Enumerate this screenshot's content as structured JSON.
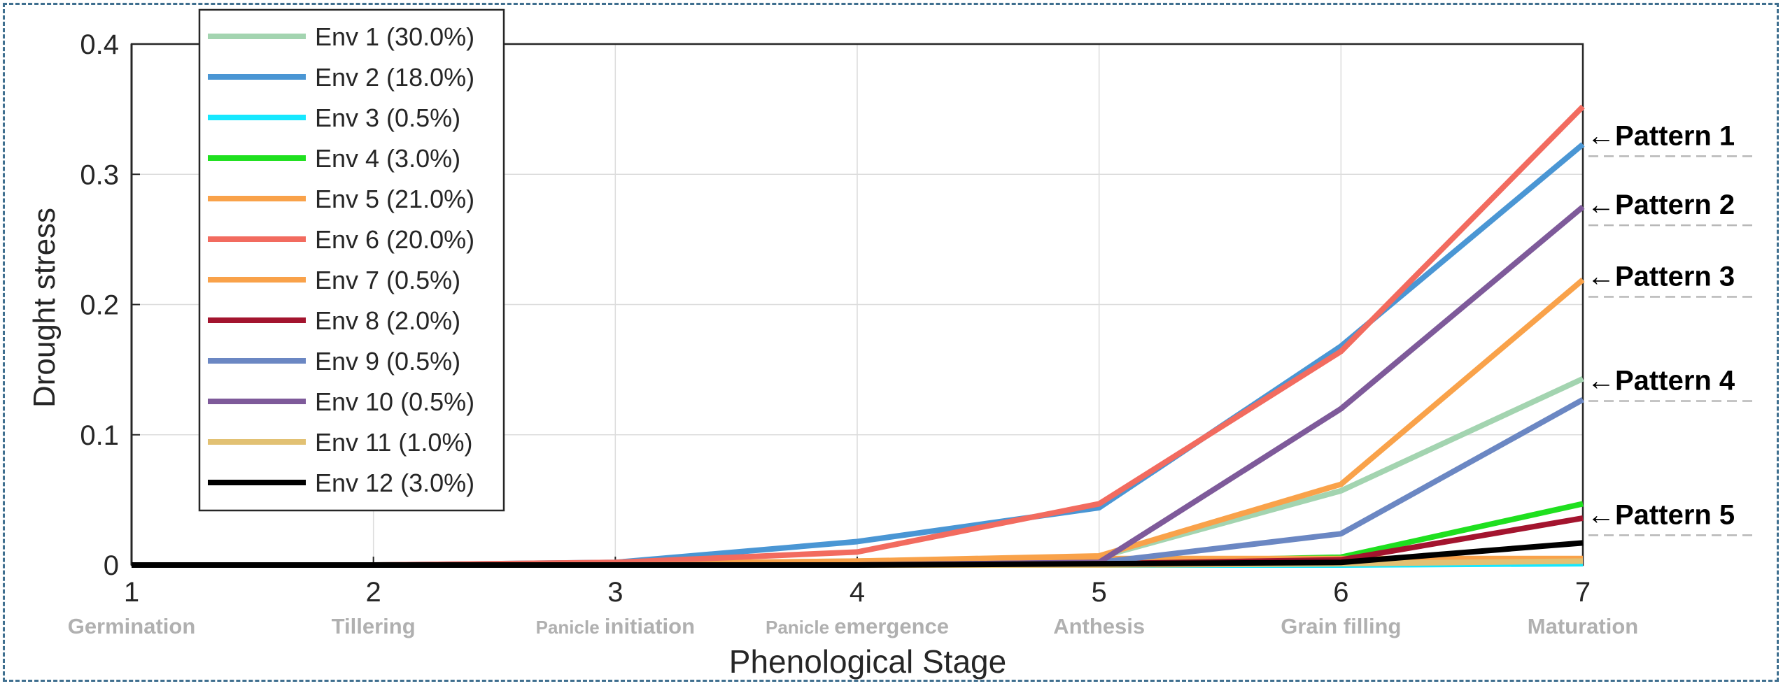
{
  "chart_data": {
    "type": "line",
    "title": "",
    "xlabel": "Phenological Stage",
    "ylabel": "Drought stress",
    "x": [
      1,
      2,
      3,
      4,
      5,
      6,
      7
    ],
    "x_ticks": [
      "1",
      "2",
      "3",
      "4",
      "5",
      "6",
      "7"
    ],
    "y_ticks": [
      "0",
      "0.1",
      "0.2",
      "0.3",
      "0.4"
    ],
    "xlim": [
      1,
      7
    ],
    "ylim": [
      0,
      0.4
    ],
    "grid": true,
    "legend_position": "top-left",
    "stage_labels": [
      {
        "pre": "",
        "main": "Germination"
      },
      {
        "pre": "",
        "main": "Tillering"
      },
      {
        "pre": "Panicle ",
        "main": "initiation"
      },
      {
        "pre": "Panicle ",
        "main": "emergence"
      },
      {
        "pre": "",
        "main": "Anthesis"
      },
      {
        "pre": "",
        "main": "Grain filling"
      },
      {
        "pre": "",
        "main": "Maturation"
      }
    ],
    "series": [
      {
        "name": "Env 1 (30.0%)",
        "color": "#a3d4b0",
        "values": [
          0,
          0,
          0.001,
          0.003,
          0.006,
          0.057,
          0.143
        ]
      },
      {
        "name": "Env 2 (18.0%)",
        "color": "#4a96d4",
        "values": [
          0,
          0,
          0.002,
          0.018,
          0.044,
          0.168,
          0.323
        ]
      },
      {
        "name": "Env 3 (0.5%)",
        "color": "#16e8ff",
        "values": [
          0,
          0,
          0,
          0,
          0,
          0,
          0.001
        ]
      },
      {
        "name": "Env 4 (3.0%)",
        "color": "#1fe01f",
        "values": [
          0,
          0,
          0,
          0.001,
          0.002,
          0.006,
          0.047
        ]
      },
      {
        "name": "Env 5 (21.0%)",
        "color": "#f9a24a",
        "values": [
          0,
          0,
          0.001,
          0.003,
          0.007,
          0.062,
          0.219
        ]
      },
      {
        "name": "Env 6 (20.0%)",
        "color": "#f26b5f",
        "values": [
          0,
          0,
          0.002,
          0.01,
          0.047,
          0.164,
          0.352
        ]
      },
      {
        "name": "Env 7 (0.5%)",
        "color": "#f9a24a",
        "values": [
          0,
          0,
          0,
          0.001,
          0.005,
          0.005,
          0.005
        ]
      },
      {
        "name": "Env 8 (2.0%)",
        "color": "#a3142e",
        "values": [
          0,
          0,
          0,
          0,
          0.001,
          0.004,
          0.036
        ]
      },
      {
        "name": "Env 9 (0.5%)",
        "color": "#6b87c3",
        "values": [
          0,
          0,
          0,
          0,
          0.002,
          0.024,
          0.127
        ]
      },
      {
        "name": "Env 10 (0.5%)",
        "color": "#7e5a9a",
        "values": [
          0,
          0,
          0,
          0,
          0.002,
          0.12,
          0.275
        ]
      },
      {
        "name": "Env 11 (1.0%)",
        "color": "#e2c173",
        "values": [
          0,
          0,
          0,
          0,
          0,
          0.001,
          0.003
        ]
      },
      {
        "name": "Env 12 (3.0%)",
        "color": "#000000",
        "values": [
          0,
          0,
          0,
          0,
          0.001,
          0.002,
          0.017
        ]
      }
    ],
    "annotations": [
      {
        "text": "Pattern 1",
        "arrow": "←",
        "y": 0.33
      },
      {
        "text": "Pattern 2",
        "arrow": "←",
        "y": 0.277
      },
      {
        "text": "Pattern 3",
        "arrow": "←",
        "y": 0.222
      },
      {
        "text": "Pattern 4",
        "arrow": "←",
        "y": 0.142
      },
      {
        "text": "Pattern 5",
        "arrow": "←",
        "y": 0.039
      }
    ]
  }
}
